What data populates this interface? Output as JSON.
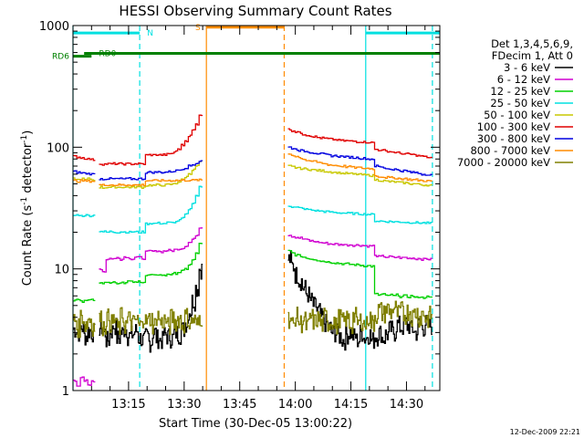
{
  "chart_data": {
    "type": "line",
    "title": "HESSI Observing Summary Count Rates",
    "xlabel": "Start Time (30-Dec-05 13:00:22)",
    "ylabel_prefix": "Count Rate (s",
    "ylabel_sup1": "-1",
    "ylabel_mid": " detector",
    "ylabel_sup2": "-1",
    "ylabel_suffix": ")",
    "yscale": "log",
    "ylim": [
      1,
      1000
    ],
    "xlim_minutes": [
      0,
      99
    ],
    "xticks": [
      {
        "m": 15,
        "label": "13:15"
      },
      {
        "m": 30,
        "label": "13:30"
      },
      {
        "m": 45,
        "label": "13:45"
      },
      {
        "m": 60,
        "label": "14:00"
      },
      {
        "m": 75,
        "label": "14:15"
      },
      {
        "m": 90,
        "label": "14:30"
      }
    ],
    "yticks": [
      {
        "v": 1,
        "label": "1"
      },
      {
        "v": 10,
        "label": "10"
      },
      {
        "v": 100,
        "label": "100"
      },
      {
        "v": 1000,
        "label": "1000"
      }
    ],
    "legend_header": [
      "Det 1,3,4,5,6,9,",
      "FDecim 1, Att 0"
    ],
    "series": [
      {
        "name": "3 - 6 keV",
        "color": "#000000",
        "segments": [
          {
            "start": 0,
            "end": 6,
            "values": [
              3.2,
              3.0,
              3.3,
              2.8,
              3.1,
              3.0
            ]
          },
          {
            "start": 7,
            "end": 35,
            "values": [
              3.3,
              3.0,
              2.6,
              3.1,
              3.4,
              2.7,
              3.0,
              3.2,
              2.8,
              2.9,
              3.1,
              2.7,
              2.6,
              2.8,
              2.5,
              3.0,
              2.7,
              2.6,
              2.9,
              2.8,
              2.7,
              3.0,
              2.9,
              3.2,
              3.6,
              4.5,
              5.5,
              7.0,
              10.0
            ]
          },
          {
            "start": 58,
            "end": 97,
            "values": [
              12,
              10.5,
              9.0,
              8.0,
              7.0,
              6.2,
              5.5,
              5.0,
              4.5,
              4.0,
              3.6,
              3.3,
              3.0,
              3.0,
              2.8,
              2.6,
              2.9,
              3.0,
              2.8,
              2.6,
              3.0,
              2.7,
              2.9,
              2.6,
              2.8,
              3.0,
              2.7,
              2.9,
              3.2,
              3.0,
              3.5,
              3.3,
              3.6,
              3.4,
              3.2,
              3.0,
              3.5,
              3.3,
              3.6,
              3.4
            ]
          }
        ]
      },
      {
        "name": "6 - 12 keV",
        "color": "#d000d0",
        "segments": [
          {
            "start": 0,
            "end": 6,
            "values": [
              1.2,
              1.1,
              1.3,
              1.2,
              1.1,
              1.2
            ]
          },
          {
            "start": 7,
            "end": 35,
            "values": [
              10,
              9.5,
              12,
              12.2,
              12.1,
              12.4,
              12.0,
              12.6,
              12.3,
              12.1,
              12.5,
              12.4,
              12.2,
              13.8,
              14.0,
              13.9,
              14.1,
              13.8,
              14.0,
              14.2,
              14.1,
              14.4,
              14.6,
              14.8,
              15.5,
              16.5,
              17.5,
              19.0,
              22.0
            ]
          },
          {
            "start": 58,
            "end": 97,
            "values": [
              19,
              18.5,
              18.2,
              18.0,
              17.6,
              17.3,
              17.0,
              16.8,
              16.6,
              16.4,
              16.3,
              16.1,
              16.0,
              16.0,
              15.8,
              15.9,
              15.7,
              15.8,
              15.6,
              15.7,
              15.6,
              15.5,
              15.4,
              15.5,
              12.8,
              12.6,
              12.7,
              12.5,
              12.6,
              12.4,
              12.5,
              12.3,
              12.4,
              12.2,
              12.3,
              12.1,
              12.2,
              12.0,
              12.1,
              12.0
            ]
          }
        ]
      },
      {
        "name": "12 - 25 keV",
        "color": "#00d000",
        "segments": [
          {
            "start": 0,
            "end": 6,
            "values": [
              5.5,
              5.6,
              5.4,
              5.6,
              5.5,
              5.6
            ]
          },
          {
            "start": 7,
            "end": 35,
            "values": [
              7.8,
              7.6,
              7.9,
              7.7,
              7.8,
              7.6,
              7.8,
              7.7,
              7.9,
              7.8,
              7.7,
              7.9,
              7.8,
              8.8,
              8.9,
              8.8,
              9.0,
              8.9,
              8.8,
              9.1,
              9.0,
              9.2,
              9.4,
              9.6,
              10.0,
              10.8,
              11.8,
              13.5,
              16.0
            ]
          },
          {
            "start": 58,
            "end": 97,
            "values": [
              14.0,
              13.5,
              13.0,
              12.8,
              12.5,
              12.3,
              12.1,
              12.0,
              11.8,
              11.6,
              11.5,
              11.4,
              11.3,
              11.2,
              11.1,
              11.0,
              11.0,
              10.9,
              10.8,
              10.8,
              10.7,
              10.6,
              10.6,
              10.5,
              6.2,
              6.1,
              6.2,
              6.0,
              6.1,
              6.0,
              6.1,
              5.9,
              6.0,
              5.9,
              6.0,
              5.8,
              5.9,
              5.8,
              5.9,
              5.8
            ]
          }
        ]
      },
      {
        "name": "25 - 50 keV",
        "color": "#00e0e0",
        "segments": [
          {
            "start": 0,
            "end": 6,
            "values": [
              27.5,
              27.8,
              27.3,
              27.6,
              27.4,
              27.5
            ]
          },
          {
            "start": 7,
            "end": 35,
            "values": [
              20.5,
              20.2,
              20.0,
              20.3,
              20.1,
              20.0,
              20.2,
              20.1,
              20.0,
              20.2,
              20.1,
              20.0,
              20.1,
              23.5,
              23.7,
              23.6,
              23.8,
              23.7,
              23.6,
              24.0,
              23.9,
              24.3,
              25.0,
              26.0,
              28.0,
              31.0,
              35.0,
              40.0,
              47.0
            ]
          },
          {
            "start": 58,
            "end": 97,
            "values": [
              33,
              32.5,
              32.0,
              31.6,
              31.2,
              30.8,
              30.5,
              30.2,
              30.0,
              29.8,
              29.6,
              29.4,
              29.2,
              29.0,
              28.9,
              28.8,
              28.7,
              28.6,
              28.5,
              28.4,
              28.3,
              28.2,
              28.1,
              28.0,
              24.8,
              24.7,
              24.6,
              24.5,
              24.5,
              24.4,
              24.3,
              24.3,
              24.2,
              24.1,
              24.1,
              24.0,
              23.9,
              23.9,
              23.8,
              23.7
            ]
          }
        ]
      },
      {
        "name": "50 - 100 keV",
        "color": "#c8c800",
        "segments": [
          {
            "start": 0,
            "end": 6,
            "values": [
              55,
              54,
              55,
              54,
              55,
              54
            ]
          },
          {
            "start": 7,
            "end": 35,
            "values": [
              47,
              46.5,
              47,
              46.8,
              47.2,
              46.9,
              47.1,
              46.8,
              47,
              46.9,
              47.1,
              47,
              46.8,
              48.5,
              48.8,
              48.6,
              48.9,
              48.7,
              48.8,
              49.2,
              49.5,
              50.5,
              52,
              54,
              57,
              61,
              65,
              70,
              76
            ]
          },
          {
            "start": 58,
            "end": 97,
            "values": [
              70,
              69,
              68,
              67,
              66.5,
              66,
              65.5,
              65,
              64.5,
              64,
              63.5,
              63,
              62.5,
              62,
              61.5,
              61,
              61,
              60.5,
              60,
              60,
              59.5,
              59,
              59,
              58.5,
              54,
              53.5,
              53,
              52.5,
              52,
              52,
              51.5,
              51,
              51,
              50.5,
              50,
              50,
              49.5,
              49,
              49,
              48.5
            ]
          }
        ]
      },
      {
        "name": "100 - 300 keV",
        "color": "#e00000",
        "segments": [
          {
            "start": 0,
            "end": 6,
            "values": [
              84,
              83,
              82,
              81,
              80,
              79
            ]
          },
          {
            "start": 7,
            "end": 35,
            "values": [
              73,
              72.5,
              73,
              72.8,
              73.2,
              72.9,
              73.1,
              72.8,
              73,
              72.9,
              73.1,
              73,
              72.8,
              86,
              86.5,
              86.2,
              86.8,
              86.4,
              86.6,
              87.5,
              89,
              92,
              97,
              104,
              113,
              124,
              138,
              155,
              185
            ]
          },
          {
            "start": 58,
            "end": 97,
            "values": [
              140,
              137,
              134,
              131,
              128,
              126,
              124,
              122,
              120,
              119,
              118,
              117,
              116,
              115,
              114,
              113,
              113,
              112,
              112,
              111,
              111,
              110,
              110,
              109,
              96,
              95,
              94,
              93,
              92,
              91,
              90,
              89,
              88,
              88,
              87,
              86,
              85,
              84,
              83,
              82
            ]
          }
        ]
      },
      {
        "name": "300 - 800 keV",
        "color": "#0000e0",
        "segments": [
          {
            "start": 0,
            "end": 6,
            "values": [
              63,
              62,
              61.5,
              61,
              60.5,
              60
            ]
          },
          {
            "start": 7,
            "end": 35,
            "values": [
              55,
              54.8,
              55.2,
              55,
              54.9,
              55.1,
              55,
              54.8,
              55.2,
              55,
              54.9,
              55.1,
              55,
              62,
              62.3,
              62.1,
              62.5,
              62.2,
              62.4,
              62.8,
              63.2,
              64,
              65,
              66.5,
              68,
              70,
              72,
              74,
              77
            ]
          },
          {
            "start": 58,
            "end": 97,
            "values": [
              100,
              98,
              96,
              94,
              93,
              92,
              91,
              90,
              89,
              88,
              87,
              86,
              85,
              85,
              84,
              84,
              83,
              83,
              82,
              82,
              81,
              81,
              80,
              80,
              70,
              69,
              68,
              67,
              66,
              66,
              65,
              64,
              64,
              63,
              62,
              62,
              61,
              60,
              60,
              59
            ]
          }
        ]
      },
      {
        "name": "800 - 7000 keV",
        "color": "#ff8c00",
        "segments": [
          {
            "start": 0,
            "end": 6,
            "values": [
              53,
              52.5,
              53,
              52.8,
              52.6,
              52.8
            ]
          },
          {
            "start": 7,
            "end": 35,
            "values": [
              49,
              48.8,
              49.2,
              49,
              48.9,
              49.1,
              49,
              48.8,
              49.2,
              49,
              48.9,
              49.1,
              49,
              53,
              53.2,
              53.1,
              53.3,
              53.2,
              53.1,
              53.3,
              53.2,
              53.4,
              53.3,
              53.5,
              53.4,
              53.6,
              53.5,
              53.7,
              53.6
            ]
          },
          {
            "start": 58,
            "end": 97,
            "values": [
              88,
              86,
              84,
              82,
              80,
              78,
              77,
              76,
              75,
              74,
              73,
              72,
              71,
              71,
              70,
              70,
              69,
              69,
              68,
              68,
              67.5,
              67,
              67,
              66.5,
              58,
              57.5,
              57,
              56.5,
              56,
              56,
              55.5,
              55,
              55,
              54.5,
              54,
              54,
              53.5,
              53,
              53,
              52.5
            ]
          }
        ]
      },
      {
        "name": "7000 - 20000 keV",
        "color": "#808000",
        "segments": [
          {
            "start": 0,
            "end": 6,
            "values": [
              3.8,
              3.3,
              4.1,
              3.5,
              3.9,
              3.4
            ]
          },
          {
            "start": 7,
            "end": 35,
            "values": [
              3.9,
              3.4,
              4.0,
              3.6,
              3.8,
              3.3,
              4.1,
              3.5,
              3.9,
              3.6,
              3.8,
              3.4,
              4.0,
              3.7,
              3.9,
              3.5,
              4.1,
              3.6,
              3.8,
              3.4,
              4.0,
              3.7,
              3.9,
              3.5,
              4.1,
              3.6,
              3.8,
              3.5,
              4.0
            ]
          },
          {
            "start": 58,
            "end": 97,
            "values": [
              3.9,
              3.5,
              4.1,
              3.6,
              3.8,
              3.4,
              4.0,
              3.7,
              3.9,
              3.5,
              4.1,
              3.6,
              3.8,
              3.4,
              4.0,
              3.7,
              3.9,
              3.5,
              4.1,
              3.6,
              3.8,
              3.5,
              4.0,
              3.6,
              4.2,
              4.6,
              4.3,
              4.7,
              4.4,
              4.8,
              4.3,
              4.6,
              4.2,
              4.5,
              4.1,
              4.4,
              4.0,
              4.3,
              3.9,
              4.2
            ]
          }
        ]
      }
    ],
    "markers": [
      {
        "minute": 0,
        "color": "#00e0e0",
        "style": "solid",
        "label": ""
      },
      {
        "minute": 18,
        "color": "#00e0e0",
        "style": "dashed",
        "label": ""
      },
      {
        "minute": 36,
        "color": "#ff8c00",
        "style": "solid",
        "label": ""
      },
      {
        "minute": 57,
        "color": "#ff8c00",
        "style": "dashed",
        "label": ""
      },
      {
        "minute": 79,
        "color": "#00e0e0",
        "style": "solid",
        "label": ""
      },
      {
        "minute": 97,
        "color": "#00e0e0",
        "style": "dashed",
        "label": ""
      }
    ],
    "flag_bars": [
      {
        "name": "N",
        "color": "#00e0e0",
        "level": 870,
        "segments": [
          [
            0,
            18
          ],
          [
            79,
            99
          ]
        ],
        "label": "N",
        "label_minute": 20
      },
      {
        "name": "S",
        "color": "#ff8c00",
        "level": 970,
        "segments": [
          [
            36,
            57
          ]
        ],
        "label": "S",
        "label_minute": 33
      },
      {
        "name": "RD0",
        "color": "#008000",
        "level": 590,
        "segments": [
          [
            3,
            99
          ]
        ],
        "label": "RD0",
        "label_minute": 7
      },
      {
        "name": "RD6",
        "color": "#008000",
        "level": 560,
        "segments": [
          [
            0,
            5
          ]
        ],
        "label": "RD6",
        "label_minute": -1
      }
    ]
  },
  "footer_timestamp": "12-Dec-2009 22:21"
}
